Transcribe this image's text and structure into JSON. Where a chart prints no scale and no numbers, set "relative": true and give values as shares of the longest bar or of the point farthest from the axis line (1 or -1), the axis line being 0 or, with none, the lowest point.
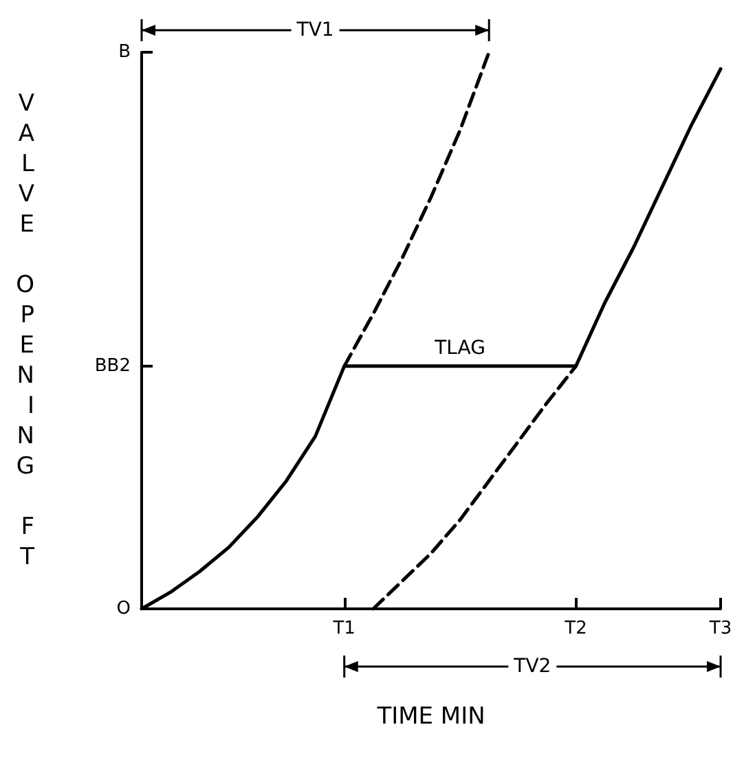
{
  "chart_data": {
    "type": "line",
    "xlabel": "TIME MIN",
    "ylabel": "VALVE OPENING FT",
    "relative": true,
    "categories": [
      null,
      null,
      null,
      null,
      null,
      null,
      null,
      "T1",
      null,
      null,
      null,
      null,
      null,
      null,
      null,
      "T2",
      null,
      null,
      null,
      null,
      "T3"
    ],
    "series": [
      {
        "color": "#000000",
        "line_style": "solid",
        "values": [
          0,
          0.03,
          0.067,
          0.11,
          0.165,
          0.23,
          0.31,
          0.436,
          0.436,
          0.436,
          0.436,
          0.436,
          0.436,
          0.436,
          0.436,
          0.436,
          0.55,
          0.65,
          0.76,
          0.87,
          0.97
        ]
      },
      {
        "color": "#000000",
        "line_style": "dashed",
        "values": [
          null,
          null,
          null,
          null,
          null,
          null,
          null,
          0.436,
          0.53,
          0.63,
          0.74,
          0.86,
          1.0,
          null,
          null,
          null,
          null,
          null,
          null,
          null,
          null
        ]
      },
      {
        "color": "#000000",
        "line_style": "dashed",
        "values": [
          null,
          null,
          null,
          null,
          null,
          null,
          null,
          null,
          0,
          0.05,
          0.1,
          0.16,
          0.23,
          0.3,
          0.37,
          0.436,
          null,
          null,
          null,
          null,
          null
        ]
      }
    ],
    "annotations": [
      "O",
      "BB2",
      "B",
      "TV1",
      "TLAG",
      "TV2"
    ],
    "marker": "none",
    "grid": false
  }
}
